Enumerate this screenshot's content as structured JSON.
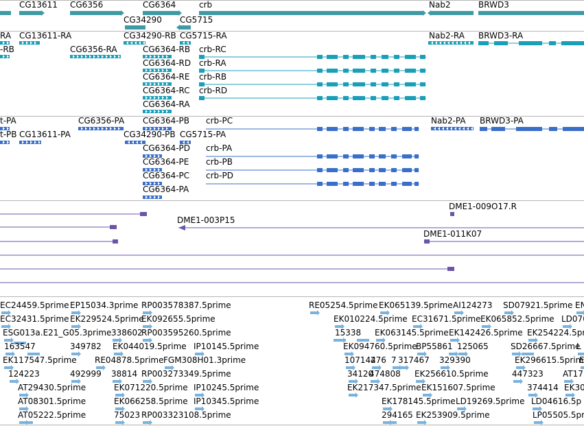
{
  "colors": {
    "gene": "#3f9aa5",
    "mrna": "#1a9fb8",
    "protein": "#3a6fc9",
    "clone": "#6b55a8",
    "est": "#7ab2de"
  },
  "tracks": {
    "gene": {
      "labels": [
        "CG13611",
        "CG6356",
        "CG6364",
        "crb",
        "Nab2",
        "BRWD3",
        "CG34290",
        "CG5715"
      ]
    },
    "mrna": {
      "labels": [
        "RA",
        "CG13611-RA",
        "CG34290-RB",
        "CG5715-RA",
        "Nab2-RA",
        "BRWD3-RA",
        "-RB",
        "CG6356-RA",
        "CG6364-RB",
        "crb-RC",
        "CG6364-RD",
        "crb-RA",
        "CG6364-RE",
        "crb-RB",
        "CG6364-RC",
        "crb-RD",
        "CG6364-RA"
      ]
    },
    "protein": {
      "labels": [
        "t-PA",
        "CG6356-PA",
        "CG6364-PB",
        "crb-PC",
        "Nab2-PA",
        "BRWD3-PA",
        "t-PB",
        "CG13611-PA",
        "CG34290-PB",
        "CG5715-PA",
        "CG6364-PD",
        "crb-PA",
        "CG6364-PE",
        "crb-PB",
        "CG6364-PC",
        "crb-PD",
        "CG6364-PA"
      ]
    },
    "clone": {
      "labels": [
        "DME1-009O17.R",
        "DME1-003P15",
        "DME1-011K07"
      ]
    },
    "est": {
      "labels": [
        "EC24459.5prime",
        "EP15034.3prime",
        "RP003578387.5prime",
        "RE05254.5prime",
        "EK065139.5prime",
        "AI124273",
        "SD07921.5prime",
        "EN",
        "EC32431.5prime",
        "EK229524.5prime",
        "EK092655.5prime",
        "EK010224.5prime",
        "EC31671.5prime",
        "EK065852.5prime",
        "LD070",
        "ESG013a.E21_G05.3prime",
        "338602",
        "RP003595260.5prime",
        "15338",
        "EK063145.5prime",
        "EK142426.5prime",
        "EK254224.5prime",
        "163547",
        "349782",
        "EK044019.5prime",
        "IP10145.5prime",
        "EK094760.5prime",
        "BP5586",
        "1",
        "125065",
        "SD26667.5prime",
        "L",
        "EK117547.5prime",
        "RE04878.5prime",
        "FGM308H01.3prime",
        "107144",
        "276",
        "7",
        "317467",
        "329390",
        "EK296615.5prime",
        "E",
        "124223",
        "492999",
        "38814",
        "RP003273349.5prime",
        "34120",
        "474808",
        "EK256610.5prime",
        "447323",
        "AT17",
        "AT29430.5prime",
        "EK071220.5prime",
        "IP10245.5prime",
        "EK217347.5prime",
        "EK151607.5prime",
        "374414",
        "EK30",
        "AT08301.5prime",
        "EK066258.5prime",
        "IP10345.5prime",
        "EK178145.5prime",
        "LD19269.5prime",
        "LD04616.5p",
        "AT05222.5prime",
        "75023",
        "RP003323108.5prime",
        "294165",
        "EK253909.5prime",
        "LP05505.5pr"
      ]
    }
  }
}
